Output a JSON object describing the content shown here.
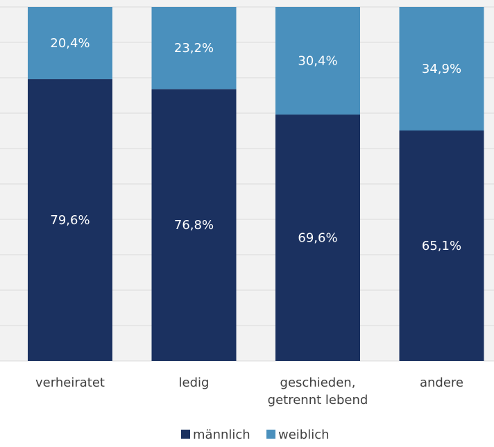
{
  "chart_data": {
    "type": "bar",
    "stacked": "percent",
    "categories": [
      [
        "verheiratet"
      ],
      [
        "ledig"
      ],
      [
        "geschieden,",
        "getrennt lebend"
      ],
      [
        "andere"
      ]
    ],
    "series": [
      {
        "name": "männlich",
        "values": [
          79.6,
          76.8,
          69.6,
          65.1
        ],
        "labels": [
          "79,6%",
          "76,8%",
          "69,6%",
          "65,1%"
        ],
        "color": "#1b3160"
      },
      {
        "name": "weiblich",
        "values": [
          20.4,
          23.2,
          30.4,
          34.9
        ],
        "labels": [
          "20,4%",
          "23,2%",
          "30,4%",
          "34,9%"
        ],
        "color": "#4a90bd"
      }
    ],
    "ylim": [
      0,
      100
    ],
    "grid": true,
    "legend": "bottom",
    "colors": {
      "background": "#f2f2f2",
      "gridline": "#d9d9d9",
      "axis_text": "#404040",
      "label_text": "#ffffff"
    }
  }
}
